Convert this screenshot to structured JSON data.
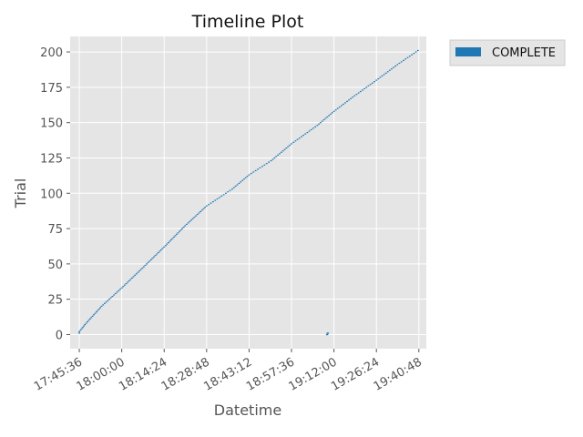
{
  "chart_data": {
    "type": "timeline",
    "title": "Timeline Plot",
    "xlabel": "Datetime",
    "ylabel": "Trial",
    "x_tick_labels": [
      "17:45:36",
      "18:00:00",
      "18:14:24",
      "18:28:48",
      "18:43:12",
      "18:57:36",
      "19:12:00",
      "19:26:24",
      "19:40:48"
    ],
    "x_range": [
      "17:42:30",
      "19:43:20"
    ],
    "y_ticks": [
      0,
      25,
      50,
      75,
      100,
      125,
      150,
      175,
      200
    ],
    "y_tick_labels": [
      "0",
      "25",
      "50",
      "75",
      "100",
      "125",
      "150",
      "175",
      "200"
    ],
    "ylim": [
      -10,
      211
    ],
    "grid": true,
    "legend": {
      "position": "outside-top-right",
      "entries": [
        {
          "label": "COMPLETE",
          "color": "#1f77b4"
        }
      ]
    },
    "series": [
      {
        "name": "COMPLETE",
        "color": "#1f77b4",
        "trial_range": [
          1,
          201
        ],
        "trend_points": [
          {
            "time": "17:45:36",
            "trial": 2
          },
          {
            "time": "17:47:55",
            "trial": 8
          },
          {
            "time": "17:53:10",
            "trial": 20
          },
          {
            "time": "18:00:00",
            "trial": 33
          },
          {
            "time": "18:07:30",
            "trial": 48
          },
          {
            "time": "18:14:24",
            "trial": 62
          },
          {
            "time": "18:21:30",
            "trial": 77
          },
          {
            "time": "18:28:48",
            "trial": 91
          },
          {
            "time": "18:37:30",
            "trial": 103
          },
          {
            "time": "18:43:12",
            "trial": 113
          },
          {
            "time": "18:50:40",
            "trial": 123
          },
          {
            "time": "18:57:36",
            "trial": 135
          },
          {
            "time": "19:06:20",
            "trial": 148
          },
          {
            "time": "19:12:00",
            "trial": 158
          },
          {
            "time": "19:19:00",
            "trial": 169
          },
          {
            "time": "19:26:24",
            "trial": 180
          },
          {
            "time": "19:33:30",
            "trial": 191
          },
          {
            "time": "19:40:30",
            "trial": 201
          }
        ],
        "outliers": [
          {
            "time": "19:09:40",
            "trial": 0
          },
          {
            "time": "19:09:55",
            "trial": 1
          }
        ]
      }
    ]
  }
}
